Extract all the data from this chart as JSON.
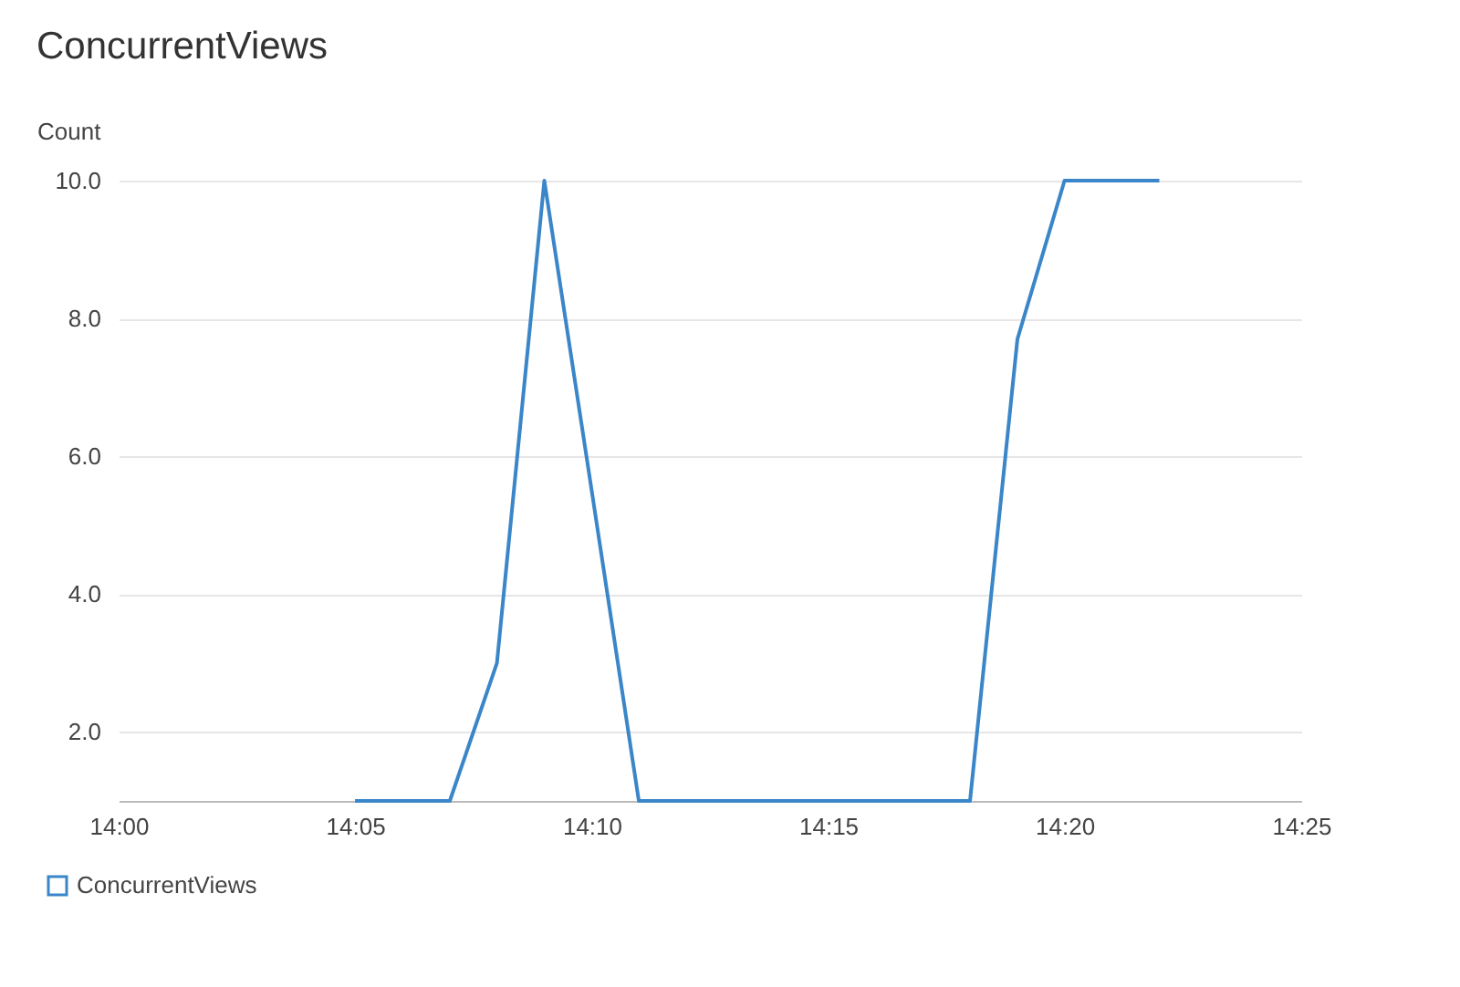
{
  "chart_data": {
    "type": "line",
    "title": "ConcurrentViews",
    "ylabel": "Count",
    "x": [
      14.0833,
      14.1167,
      14.1333,
      14.15,
      14.1667,
      14.1833,
      14.3,
      14.3167,
      14.3333,
      14.3667
    ],
    "series": [
      {
        "name": "ConcurrentViews",
        "color": "#3a86c8",
        "values": [
          1,
          1,
          3,
          10,
          5.5,
          1,
          1,
          7.7,
          10,
          10
        ]
      }
    ],
    "xlim": [
      14,
      14.4167
    ],
    "xticks": [
      {
        "value": 14,
        "label": "14:00"
      },
      {
        "value": 14.0833,
        "label": "14:05"
      },
      {
        "value": 14.1667,
        "label": "14:10"
      },
      {
        "value": 14.25,
        "label": "14:15"
      },
      {
        "value": 14.3333,
        "label": "14:20"
      },
      {
        "value": 14.4167,
        "label": "14:25"
      }
    ],
    "ylim": [
      1,
      10
    ],
    "yticks": [
      {
        "value": 2,
        "label": "2.0"
      },
      {
        "value": 4,
        "label": "4.0"
      },
      {
        "value": 6,
        "label": "6.0"
      },
      {
        "value": 8,
        "label": "8.0"
      },
      {
        "value": 10,
        "label": "10.0"
      }
    ],
    "grid": "y",
    "legend": "bottom left",
    "marker": "none",
    "line_style": "solid"
  }
}
